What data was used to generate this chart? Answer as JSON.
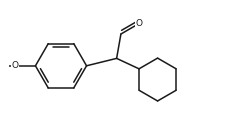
{
  "background": "#ffffff",
  "line_color": "#1a1a1a",
  "line_width": 1.1,
  "figsize": [
    2.25,
    1.25
  ],
  "dpi": 100,
  "text_color": "#1a1a1a",
  "font_size": 6.5,
  "O_label_aldehyde": "O",
  "O_label_methoxy": "O",
  "xlim": [
    -2.6,
    2.4
  ],
  "ylim": [
    -1.6,
    1.4
  ]
}
